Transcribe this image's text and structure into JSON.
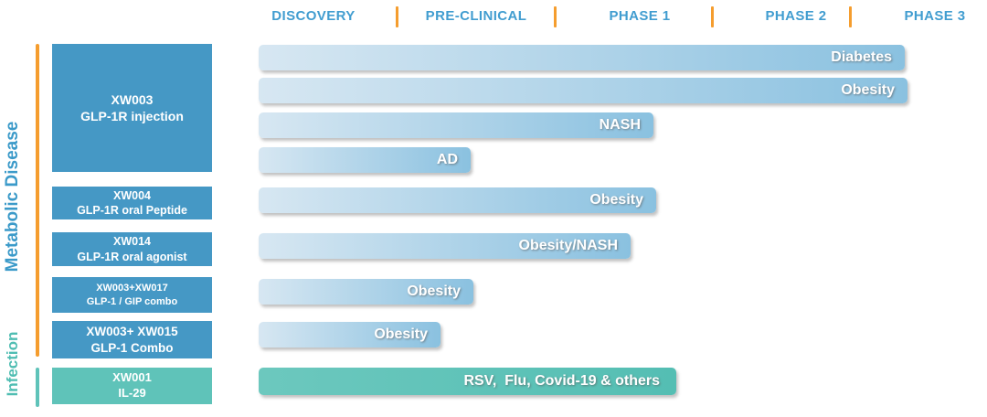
{
  "header": {
    "phases": [
      "DISCOVERY",
      "PRE-CLINICAL",
      "PHASE 1",
      "PHASE 2",
      "PHASE 3"
    ]
  },
  "sidebar": {
    "categories": [
      {
        "label": "Metabolic Disease",
        "color": "#3b9ac9"
      },
      {
        "label": "Infection",
        "color": "#4fbdb2"
      }
    ]
  },
  "programs": [
    {
      "code": "XW003",
      "description": "GLP-1R injection",
      "category": "Metabolic Disease",
      "theme": "blue"
    },
    {
      "code": "XW004",
      "description": "GLP-1R oral Peptide",
      "category": "Metabolic Disease",
      "theme": "blue"
    },
    {
      "code": "XW014",
      "description": "GLP-1R oral agonist",
      "category": "Metabolic Disease",
      "theme": "blue"
    },
    {
      "code": "XW003+XW017",
      "description": "GLP-1 / GIP combo",
      "category": "Metabolic Disease",
      "theme": "blue"
    },
    {
      "code": "XW003+ XW015",
      "description": "GLP-1 Combo",
      "category": "Metabolic Disease",
      "theme": "blue"
    },
    {
      "code": "XW001",
      "description": "IL-29",
      "category": "Infection",
      "theme": "teal"
    }
  ],
  "chart_data": {
    "type": "bar",
    "orientation": "horizontal",
    "stages": [
      "Discovery",
      "Pre-clinical",
      "Phase 1",
      "Phase 2",
      "Phase 3"
    ],
    "legend": "none",
    "rows": [
      {
        "program": "XW003",
        "indication": "Diabetes",
        "stage_reached": "Phase 3",
        "progress_frac": 0.887,
        "theme": "blue"
      },
      {
        "program": "XW003",
        "indication": "Obesity",
        "stage_reached": "Phase 3",
        "progress_frac": 0.891,
        "theme": "blue"
      },
      {
        "program": "XW003",
        "indication": "NASH",
        "stage_reached": "Phase 1",
        "progress_frac": 0.542,
        "theme": "blue"
      },
      {
        "program": "XW003",
        "indication": "AD",
        "stage_reached": "Pre-clinical",
        "progress_frac": 0.291,
        "theme": "blue"
      },
      {
        "program": "XW004",
        "indication": "Obesity",
        "stage_reached": "Phase 1",
        "progress_frac": 0.546,
        "theme": "blue"
      },
      {
        "program": "XW014",
        "indication": "Obesity/NASH",
        "stage_reached": "Phase 1",
        "progress_frac": 0.511,
        "theme": "blue"
      },
      {
        "program": "XW003+XW017",
        "indication": "Obesity",
        "stage_reached": "Pre-clinical",
        "progress_frac": 0.295,
        "theme": "blue"
      },
      {
        "program": "XW003+ XW015",
        "indication": "Obesity",
        "stage_reached": "Pre-clinical",
        "progress_frac": 0.25,
        "theme": "blue"
      },
      {
        "program": "XW001",
        "indication": "RSV,  Flu, Covid-19 & others",
        "stage_reached": "Phase 1",
        "progress_frac": 0.573,
        "theme": "teal"
      }
    ]
  },
  "colors": {
    "phase_text": "#419dd0",
    "divider_orange": "#f59d2e",
    "box_blue": "#4598c5",
    "box_teal": "#5fc3b9",
    "bar_blue_start": "#d7e7f2",
    "bar_blue_end": "#8ac1e0",
    "bar_teal_start": "#6cc8be",
    "bar_teal_end": "#54beb3",
    "rule_metabolic": "#f59d2e",
    "rule_infection": "#5fc3b9"
  }
}
